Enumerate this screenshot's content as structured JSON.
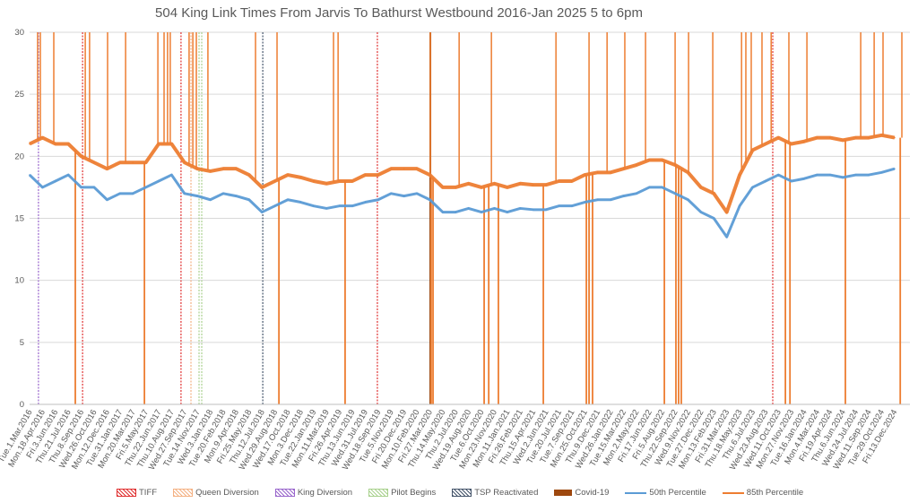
{
  "chart_data": {
    "type": "line",
    "title": "504 King Link Times From Jarvis To Bathurst Westbound 2016-Jan 2025 5 to 6pm",
    "xlabel": "",
    "ylabel": "",
    "ylim": [
      0,
      30
    ],
    "yticks": [
      0,
      5,
      10,
      15,
      20,
      25,
      30
    ],
    "grid": true,
    "legend_placement": "bottom",
    "day_step_per_category": 48,
    "xlim_days": [
      0,
      3273
    ],
    "categories": [
      "Tue.1.Mar.2016",
      "Mon.18.Apr.2016",
      "Fri.3.Jun.2016",
      "Thu.21.Jul.2016",
      "Thu.8.Sep.2016",
      "Wed.26.Oct.2016",
      "Mon.12.Dec.2016",
      "Tue.31.Jan.2017",
      "Mon.20.Mar.2017",
      "Fri.5.May.2017",
      "Thu.22.Jun.2017",
      "Thu.10.Aug.2017",
      "Wed.27.Sep.2017",
      "Tue.14.Nov.2017",
      "Wed.3.Jan.2018",
      "Tue.20.Feb.2018",
      "Mon.9.Apr.2018",
      "Fri.25.May.2018",
      "Thu.12.Jul.2018",
      "Wed.29.Aug.2018",
      "Wed.17.Oct.2018",
      "Mon.3.Dec.2018",
      "Tue.22.Jan.2019",
      "Mon.11.Mar.2019",
      "Fri.26.Apr.2019",
      "Thu.13.Jun.2019",
      "Wed.31.Jul.2019",
      "Wed.18.Sep.2019",
      "Tue.5.Nov.2019",
      "Fri.20.Dec.2019",
      "Mon.10.Feb.2020",
      "Fri.27.Mar.2020",
      "Thu.14.May.2020",
      "Thu.2.Jul.2020",
      "Wed.19.Aug.2020",
      "Tue.6.Oct.2020",
      "Mon.23.Nov.2020",
      "Mon.11.Jan.2021",
      "Fri.26.Feb.2021",
      "Thu.15.Apr.2021",
      "Wed.2.Jun.2021",
      "Tue.20.Jul.2021",
      "Tue.7.Sep.2021",
      "Mon.25.Oct.2021",
      "Thu.9.Dec.2021",
      "Wed.26.Jan.2022",
      "Tue.15.Mar.2022",
      "Mon.2.May.2022",
      "Fri.17.Jun.2022",
      "Fri.5.Aug.2022",
      "Thu.22.Sep.2022",
      "Wed.9.Nov.2022",
      "Tue.27.Dec.2022",
      "Mon.13.Feb.2023",
      "Fri.31.Mar.2023",
      "Thu.18.May.2023",
      "Thu.6.Jul.2023",
      "Wed.23.Aug.2023",
      "Wed.11.Oct.2023",
      "Mon.27.Nov.2023",
      "Tue.16.Jan.2024",
      "Mon.4.Mar.2024",
      "Fri.19.Apr.2024",
      "Thu.6.Jun.2024",
      "Wed.24.Jul.2024",
      "Wed.11.Sep.2024",
      "Tue.29.Oct.2024",
      "Fri.13.Dec.2024"
    ],
    "series": [
      {
        "name": "50th Percentile",
        "color": "#5B9BD5",
        "values": [
          18.5,
          17.5,
          18,
          18.5,
          17.5,
          17.5,
          16.5,
          17,
          17,
          17.5,
          18,
          18.5,
          17,
          16.8,
          16.5,
          17,
          16.8,
          16.5,
          15.5,
          16,
          16.5,
          16.3,
          16,
          15.8,
          16,
          16,
          16.3,
          16.5,
          17,
          16.8,
          17,
          16.5,
          15.5,
          15.5,
          15.8,
          15.5,
          15.8,
          15.5,
          15.8,
          15.7,
          15.7,
          16,
          16,
          16.3,
          16.5,
          16.5,
          16.8,
          17,
          17.5,
          17.5,
          17,
          16.5,
          15.5,
          15,
          13.5,
          16,
          17.5,
          18,
          18.5,
          18,
          18.2,
          18.5,
          18.5,
          18.3,
          18.5,
          18.5,
          18.7,
          19
        ]
      },
      {
        "name": "85th Percentile",
        "color": "#ED7D31",
        "values": [
          21,
          21.5,
          21,
          21,
          20,
          19.5,
          19,
          19.5,
          19.5,
          19.5,
          21,
          21,
          19.5,
          19,
          18.8,
          19,
          19,
          18.5,
          17.5,
          18,
          18.5,
          18.3,
          18,
          17.8,
          18,
          18,
          18.5,
          18.5,
          19,
          19,
          19,
          18.5,
          17.5,
          17.5,
          17.8,
          17.5,
          17.8,
          17.5,
          17.8,
          17.7,
          17.7,
          18,
          18,
          18.5,
          18.7,
          18.7,
          19,
          19.3,
          19.7,
          19.7,
          19.3,
          18.7,
          17.5,
          17,
          15.5,
          18.5,
          20.5,
          21,
          21.5,
          21,
          21.2,
          21.5,
          21.5,
          21.3,
          21.5,
          21.5,
          21.7,
          21.5
        ]
      }
    ],
    "p85_spikes_to_zero_days": [
      170,
      427,
      927,
      1173,
      1493,
      1500,
      1690,
      1707,
      1743,
      1910,
      2070,
      2080,
      2093,
      2360,
      2403,
      2413,
      2423,
      2810,
      2827,
      3033,
      3237
    ],
    "p85_spikes_to_max_days": [
      30,
      40,
      90,
      207,
      223,
      290,
      357,
      477,
      500,
      513,
      523,
      593,
      607,
      620,
      663,
      840,
      920,
      1130,
      1147,
      1490,
      1597,
      1717,
      1957,
      2080,
      2147,
      2213,
      2290,
      2400,
      2450,
      2540,
      2647,
      2663,
      2683,
      2723,
      2757,
      2823,
      2890,
      3090,
      3140,
      3173,
      3243
    ],
    "events": [
      {
        "name": "TIFF",
        "color": "#E03030",
        "days": [
          197,
          563,
          1293,
          2763
        ]
      },
      {
        "name": "Queen Diversion",
        "color": "#F4B183",
        "days": [
          600
        ]
      },
      {
        "name": "King Diversion",
        "color": "#9966CC",
        "days": [
          33
        ]
      },
      {
        "name": "Pilot Begins",
        "color": "#A9D18E",
        "days": [
          630,
          640
        ]
      },
      {
        "name": "TSP Reactivated",
        "color": "#44546A",
        "days": [
          867
        ]
      },
      {
        "name": "Covid-19",
        "color": "#9E480E",
        "days": [
          1490
        ]
      }
    ]
  }
}
